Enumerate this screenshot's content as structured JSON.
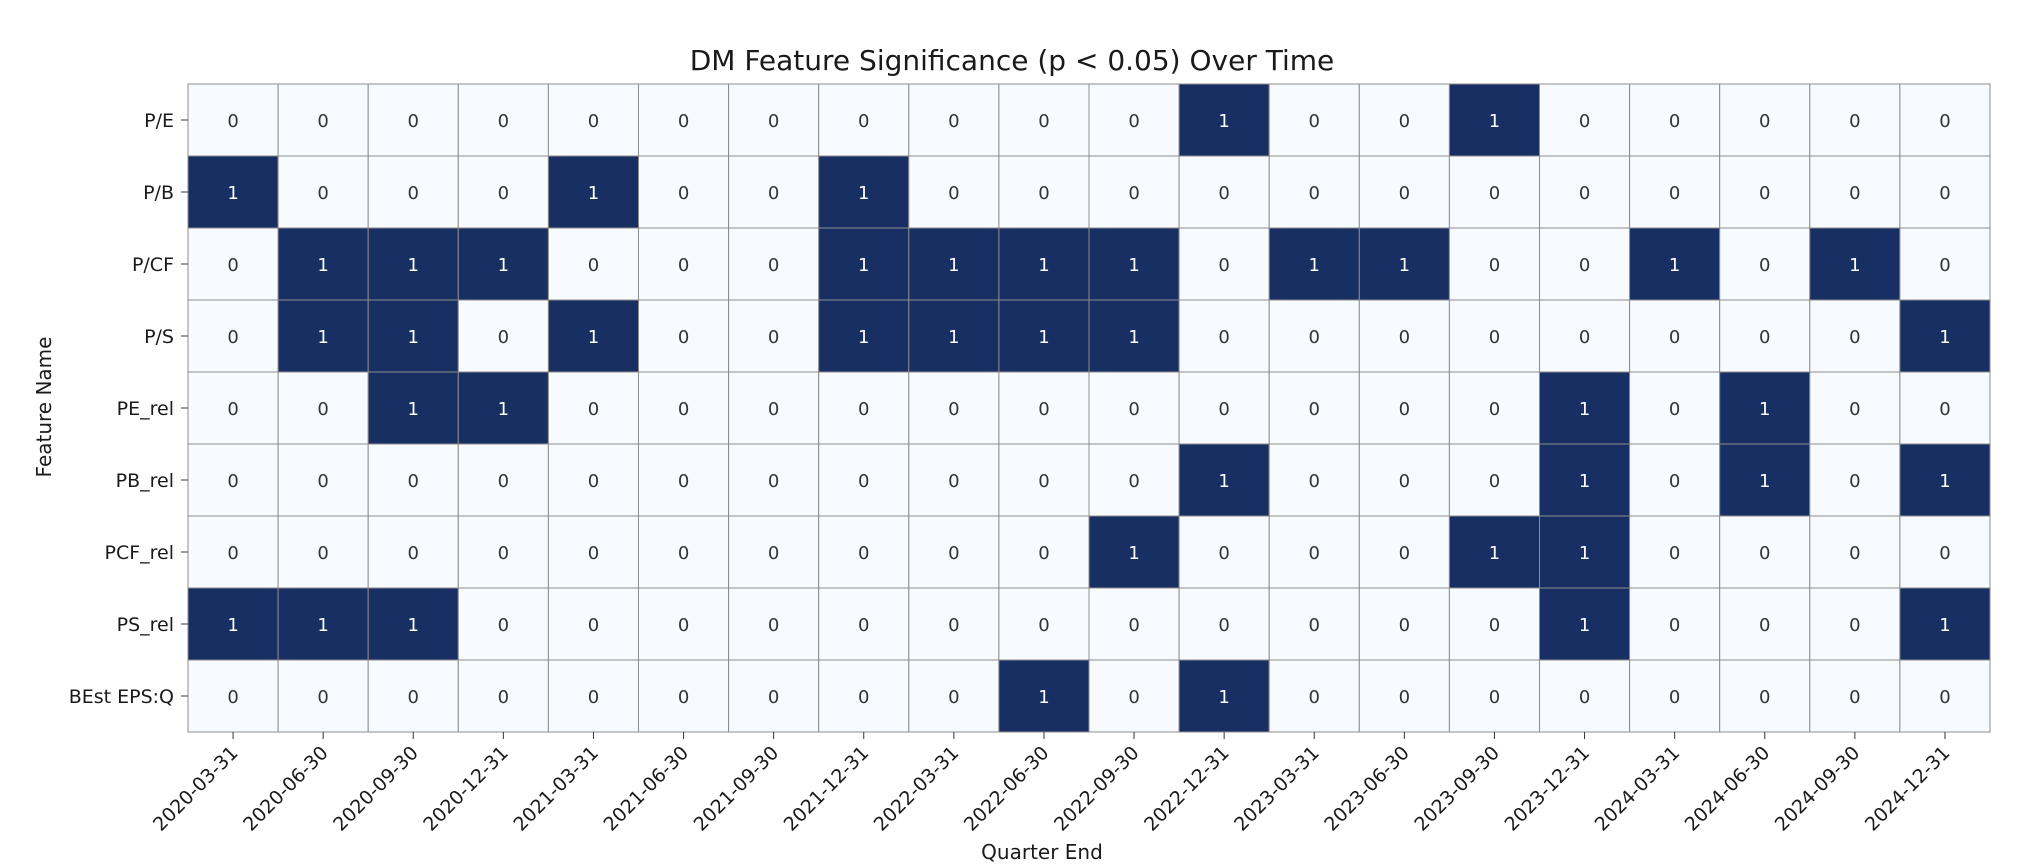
{
  "chart_data": {
    "type": "heatmap",
    "title": "DM Feature Significance (p < 0.05) Over Time",
    "xlabel": "Quarter End",
    "ylabel": "Feature Name",
    "x": [
      "2020-03-31",
      "2020-06-30",
      "2020-09-30",
      "2020-12-31",
      "2021-03-31",
      "2021-06-30",
      "2021-09-30",
      "2021-12-31",
      "2022-03-31",
      "2022-06-30",
      "2022-09-30",
      "2022-12-31",
      "2023-03-31",
      "2023-06-30",
      "2023-09-30",
      "2023-12-31",
      "2024-03-31",
      "2024-06-30",
      "2024-09-30",
      "2024-12-31"
    ],
    "y": [
      "P/E",
      "P/B",
      "P/CF",
      "P/S",
      "PE_rel",
      "PB_rel",
      "PCF_rel",
      "PS_rel",
      "BEst EPS:Q"
    ],
    "values": [
      [
        0,
        0,
        0,
        0,
        0,
        0,
        0,
        0,
        0,
        0,
        0,
        1,
        0,
        0,
        1,
        0,
        0,
        0,
        0,
        0
      ],
      [
        1,
        0,
        0,
        0,
        1,
        0,
        0,
        1,
        0,
        0,
        0,
        0,
        0,
        0,
        0,
        0,
        0,
        0,
        0,
        0
      ],
      [
        0,
        1,
        1,
        1,
        0,
        0,
        0,
        1,
        1,
        1,
        1,
        0,
        1,
        1,
        0,
        0,
        1,
        0,
        1,
        0
      ],
      [
        0,
        1,
        1,
        0,
        1,
        0,
        0,
        1,
        1,
        1,
        1,
        0,
        0,
        0,
        0,
        0,
        0,
        0,
        0,
        1
      ],
      [
        0,
        0,
        1,
        1,
        0,
        0,
        0,
        0,
        0,
        0,
        0,
        0,
        0,
        0,
        0,
        1,
        0,
        1,
        0,
        0
      ],
      [
        0,
        0,
        0,
        0,
        0,
        0,
        0,
        0,
        0,
        0,
        0,
        1,
        0,
        0,
        0,
        1,
        0,
        1,
        0,
        1
      ],
      [
        0,
        0,
        0,
        0,
        0,
        0,
        0,
        0,
        0,
        0,
        1,
        0,
        0,
        0,
        1,
        1,
        0,
        0,
        0,
        0
      ],
      [
        1,
        1,
        1,
        0,
        0,
        0,
        0,
        0,
        0,
        0,
        0,
        0,
        0,
        0,
        0,
        1,
        0,
        0,
        0,
        1
      ],
      [
        0,
        0,
        0,
        0,
        0,
        0,
        0,
        0,
        0,
        1,
        0,
        1,
        0,
        0,
        0,
        0,
        0,
        0,
        0,
        0
      ]
    ],
    "colors": {
      "low": "#f7fbff",
      "high": "#172f63",
      "grid": "#8c8c8c",
      "text_on_low": "#333333",
      "text_on_high": "#ffffff"
    }
  }
}
